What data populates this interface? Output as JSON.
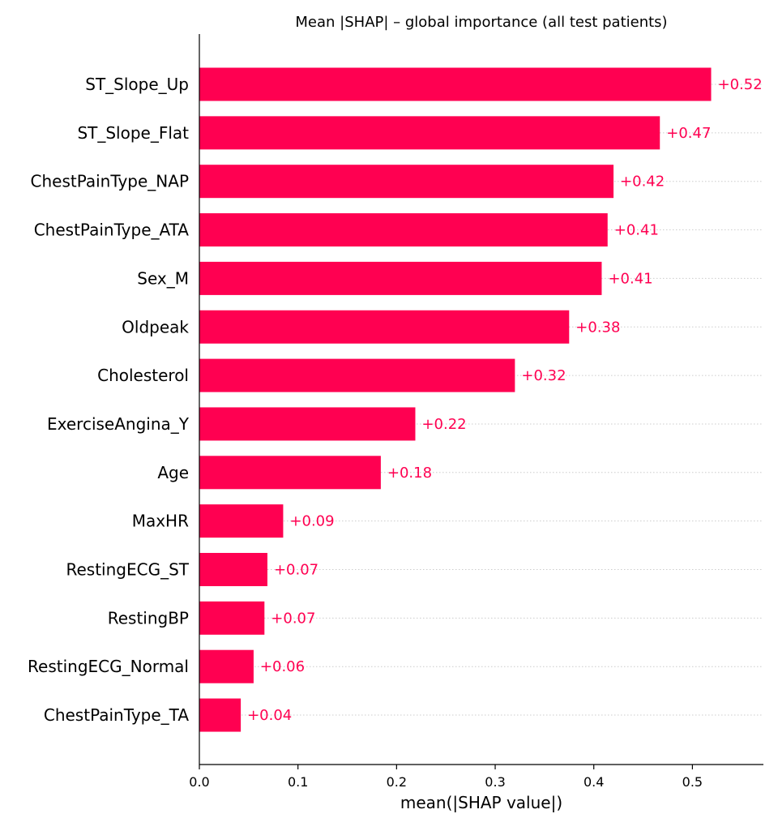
{
  "chart_data": {
    "type": "bar",
    "orientation": "horizontal",
    "title": "Mean |SHAP| – global importance (all test patients)",
    "xlabel": "mean(|SHAP value|)",
    "ylabel": "",
    "xlim": [
      0,
      0.572
    ],
    "xticks": [
      "0.0",
      "0.1",
      "0.2",
      "0.3",
      "0.4",
      "0.5"
    ],
    "grid": "dotted horizontal row lines",
    "bar_color": "#ff0051",
    "categories": [
      "ST_Slope_Up",
      "ST_Slope_Flat",
      "ChestPainType_NAP",
      "ChestPainType_ATA",
      "Sex_M",
      "Oldpeak",
      "Cholesterol",
      "ExerciseAngina_Y",
      "Age",
      "MaxHR",
      "RestingECG_ST",
      "RestingBP",
      "RestingECG_Normal",
      "ChestPainType_TA"
    ],
    "values": [
      0.519,
      0.467,
      0.42,
      0.414,
      0.408,
      0.375,
      0.32,
      0.219,
      0.184,
      0.085,
      0.069,
      0.066,
      0.055,
      0.042
    ],
    "value_labels": [
      "+0.52",
      "+0.47",
      "+0.42",
      "+0.41",
      "+0.41",
      "+0.38",
      "+0.32",
      "+0.22",
      "+0.18",
      "+0.09",
      "+0.07",
      "+0.07",
      "+0.06",
      "+0.04"
    ]
  }
}
